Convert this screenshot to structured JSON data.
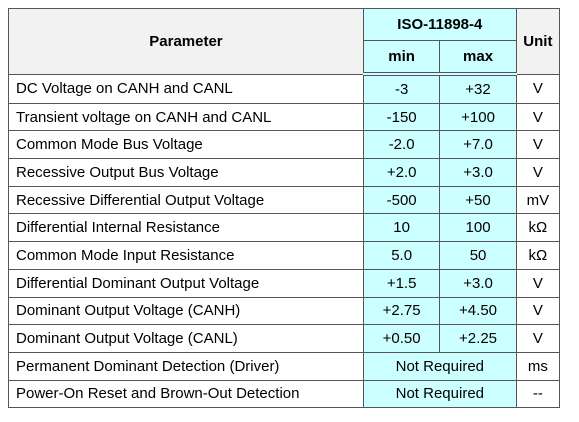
{
  "table": {
    "header": {
      "parameter": "Parameter",
      "standard": "ISO-11898-4",
      "min": "min",
      "max": "max",
      "unit": "Unit"
    },
    "rows": [
      {
        "parameter": "DC Voltage on CANH and CANL",
        "min": "-3",
        "max": "+32",
        "unit": "V"
      },
      {
        "parameter": "Transient voltage on CANH and CANL",
        "min": "-150",
        "max": "+100",
        "unit": "V"
      },
      {
        "parameter": "Common Mode Bus Voltage",
        "min": "-2.0",
        "max": "+7.0",
        "unit": "V"
      },
      {
        "parameter": "Recessive Output Bus Voltage",
        "min": "+2.0",
        "max": "+3.0",
        "unit": "V"
      },
      {
        "parameter": "Recessive Differential Output Voltage",
        "min": "-500",
        "max": "+50",
        "unit": "mV"
      },
      {
        "parameter": "Differential Internal Resistance",
        "min": "10",
        "max": "100",
        "unit": "kΩ"
      },
      {
        "parameter": "Common Mode Input Resistance",
        "min": "5.0",
        "max": "50",
        "unit": "kΩ"
      },
      {
        "parameter": "Differential Dominant Output Voltage",
        "min": "+1.5",
        "max": "+3.0",
        "unit": "V"
      },
      {
        "parameter": "Dominant Output Voltage (CANH)",
        "min": "+2.75",
        "max": "+4.50",
        "unit": "V"
      },
      {
        "parameter": "Dominant Output Voltage (CANL)",
        "min": "+0.50",
        "max": "+2.25",
        "unit": "V"
      },
      {
        "parameter": "Permanent Dominant Detection (Driver)",
        "range": "Not Required",
        "unit": "ms"
      },
      {
        "parameter": "Power-On Reset and Brown-Out Detection",
        "range": "Not Required",
        "unit": "--"
      }
    ]
  }
}
